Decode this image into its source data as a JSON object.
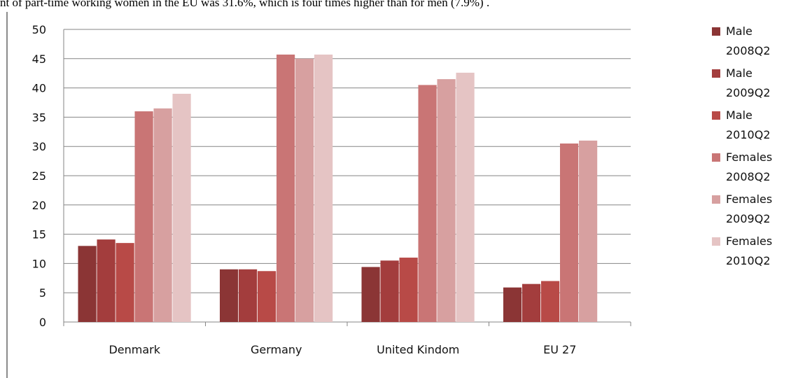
{
  "caption": "nt of part-time working women in the EU was 31.6%, which is four times higher than for men (7.9%)  .",
  "chart_data": {
    "type": "bar",
    "categories": [
      "Denmark",
      "Germany",
      "United Kindom",
      "EU 27"
    ],
    "ylim": [
      0,
      50
    ],
    "yticks": [
      0,
      5,
      10,
      15,
      20,
      25,
      30,
      35,
      40,
      45,
      50
    ],
    "grid": true,
    "legend_position": "right",
    "series": [
      {
        "name": "Male 2008Q2",
        "legend_lines": [
          "Male",
          "2008Q2"
        ],
        "color": "#8b3535",
        "values": [
          13.0,
          9.0,
          9.4,
          5.9
        ]
      },
      {
        "name": "Male 2009Q2",
        "legend_lines": [
          "Male",
          "2009Q2"
        ],
        "color": "#a33d3d",
        "values": [
          14.1,
          9.0,
          10.5,
          6.5
        ]
      },
      {
        "name": "Male 2010Q2",
        "legend_lines": [
          "Male",
          "2010Q2"
        ],
        "color": "#b84a47",
        "values": [
          13.5,
          8.7,
          11.0,
          7.0
        ]
      },
      {
        "name": "Females 2008Q2",
        "legend_lines": [
          "Females",
          "2008Q2"
        ],
        "color": "#c97575",
        "values": [
          36.0,
          45.7,
          40.5,
          30.5
        ]
      },
      {
        "name": "Females 2009Q2",
        "legend_lines": [
          "Females",
          "2009Q2"
        ],
        "color": "#d7a0a0",
        "values": [
          36.5,
          45.0,
          41.5,
          31.0
        ]
      },
      {
        "name": "Females 2010Q2",
        "legend_lines": [
          "Females",
          "2010Q2"
        ],
        "color": "#e5c4c4",
        "values": [
          39.0,
          45.7,
          42.6,
          null
        ]
      }
    ]
  }
}
